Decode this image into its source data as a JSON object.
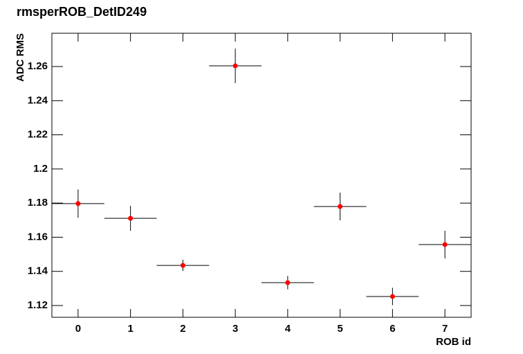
{
  "chart_data": {
    "type": "errorbar",
    "title": "rmsperROB_DetID249",
    "x_label": "ROB id",
    "y_label": "ADC RMS",
    "x": [
      0,
      1,
      2,
      3,
      4,
      5,
      6,
      7
    ],
    "values": [
      1.1797,
      1.1711,
      1.1435,
      1.2604,
      1.1334,
      1.178,
      1.1253,
      1.1557
    ],
    "errors": [
      0.0083,
      0.0073,
      0.0033,
      0.0101,
      0.0039,
      0.0081,
      0.0051,
      0.0081
    ],
    "xerr": [
      0.5,
      0.5,
      0.5,
      0.5,
      0.5,
      0.5,
      0.5,
      0.5
    ],
    "color": "#ff0000",
    "xlim": [
      -0.5,
      7.5
    ],
    "ylim": [
      1.1131,
      1.2795
    ],
    "xticks": [
      0,
      1,
      2,
      3,
      4,
      5,
      6,
      7
    ],
    "yticks": [
      1.12,
      1.14,
      1.16,
      1.18,
      1.2,
      1.22,
      1.24,
      1.26
    ],
    "grid": false
  }
}
